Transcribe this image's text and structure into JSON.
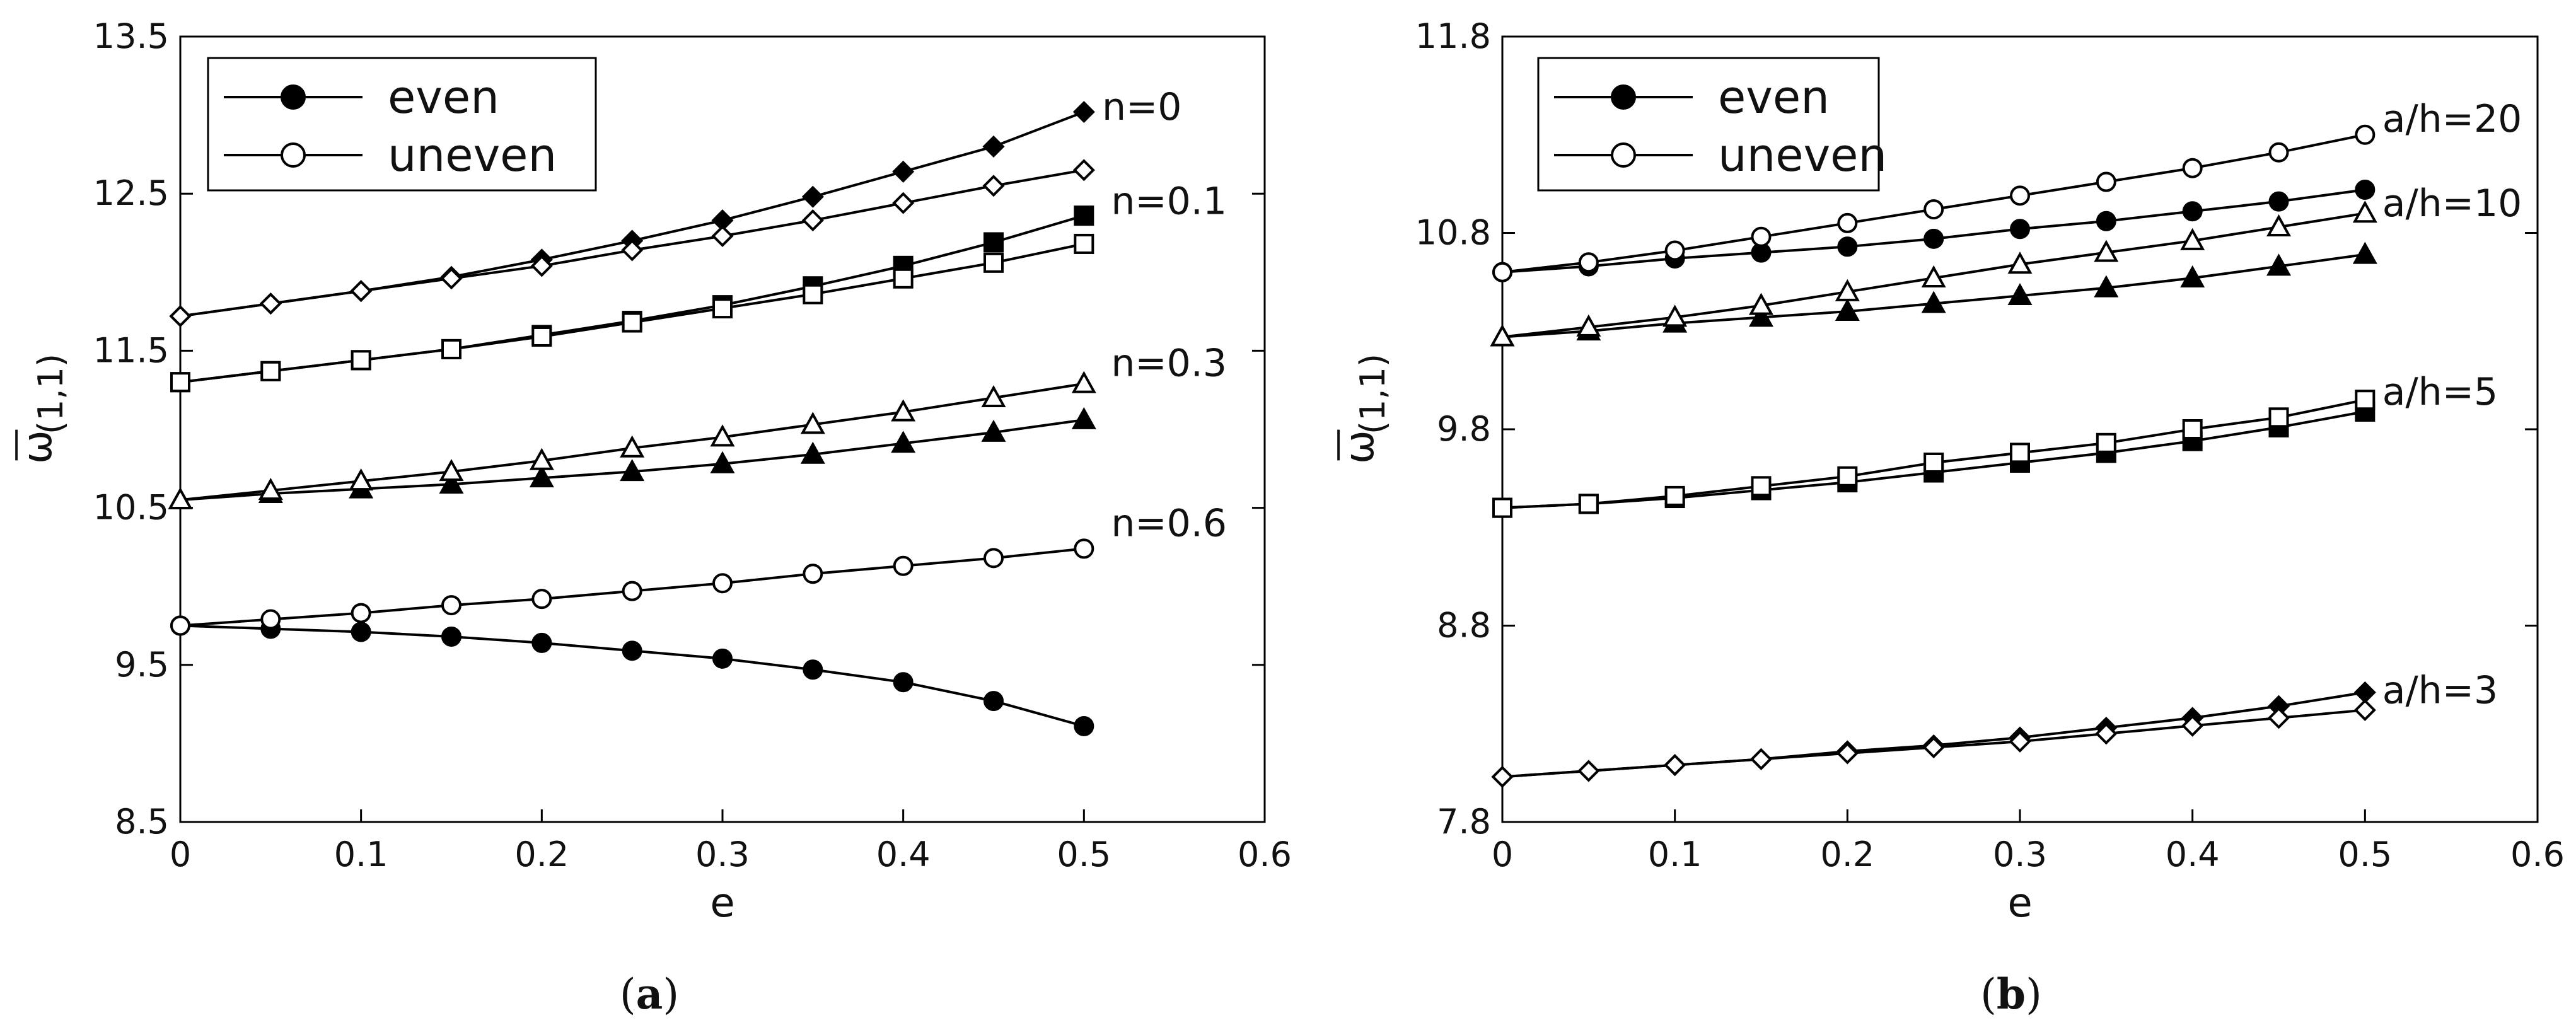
{
  "chart_data": [
    {
      "type": "line",
      "panel_label": "a",
      "xlabel": "e",
      "ylabel": "ω",
      "ylabel_overline": "—",
      "ylabel_sub": "(1,1)",
      "xlim": [
        0,
        0.6
      ],
      "ylim": [
        8.5,
        13.5
      ],
      "xticks": [
        0,
        0.1,
        0.2,
        0.3,
        0.4,
        0.5,
        0.6
      ],
      "xtick_labels": [
        "0",
        "0.1",
        "0.2",
        "0.3",
        "0.4",
        "0.5",
        "0.6"
      ],
      "yticks": [
        8.5,
        9.5,
        10.5,
        11.5,
        12.5,
        13.5
      ],
      "ytick_labels": [
        "8.5",
        "9.5",
        "10.5",
        "11.5",
        "12.5",
        "13.5"
      ],
      "legend": [
        {
          "label": "even",
          "fill": "filled"
        },
        {
          "label": "uneven",
          "fill": "open"
        }
      ],
      "x": [
        0,
        0.05,
        0.1,
        0.15,
        0.2,
        0.25,
        0.3,
        0.35,
        0.4,
        0.45,
        0.5
      ],
      "series": [
        {
          "name": "n=0 even",
          "group": "n=0",
          "marker": "diamond",
          "fill": "filled",
          "values": [
            11.72,
            11.8,
            11.88,
            11.97,
            12.08,
            12.2,
            12.33,
            12.48,
            12.64,
            12.8,
            13.02
          ]
        },
        {
          "name": "n=0 uneven",
          "group": "n=0",
          "marker": "diamond",
          "fill": "open",
          "values": [
            11.72,
            11.8,
            11.88,
            11.96,
            12.04,
            12.14,
            12.23,
            12.33,
            12.44,
            12.55,
            12.65
          ]
        },
        {
          "name": "n=0.1 even",
          "group": "n=0.1",
          "marker": "square",
          "fill": "filled",
          "values": [
            11.3,
            11.37,
            11.44,
            11.51,
            11.6,
            11.69,
            11.79,
            11.91,
            12.04,
            12.19,
            12.36
          ]
        },
        {
          "name": "n=0.1 uneven",
          "group": "n=0.1",
          "marker": "square",
          "fill": "open",
          "values": [
            11.3,
            11.37,
            11.44,
            11.51,
            11.59,
            11.68,
            11.77,
            11.86,
            11.96,
            12.06,
            12.18
          ]
        },
        {
          "name": "n=0.3 even",
          "group": "n=0.3",
          "marker": "triangle",
          "fill": "filled",
          "values": [
            10.55,
            10.59,
            10.62,
            10.65,
            10.69,
            10.73,
            10.78,
            10.84,
            10.91,
            10.98,
            11.06
          ]
        },
        {
          "name": "n=0.3 uneven",
          "group": "n=0.3",
          "marker": "triangle",
          "fill": "open",
          "values": [
            10.55,
            10.61,
            10.67,
            10.73,
            10.8,
            10.88,
            10.95,
            11.03,
            11.11,
            11.2,
            11.29
          ]
        },
        {
          "name": "n=0.6 even",
          "group": "n=0.6",
          "marker": "circle",
          "fill": "filled",
          "values": [
            9.75,
            9.73,
            9.71,
            9.68,
            9.64,
            9.59,
            9.54,
            9.47,
            9.39,
            9.27,
            9.11
          ]
        },
        {
          "name": "n=0.6 uneven",
          "group": "n=0.6",
          "marker": "circle",
          "fill": "open",
          "values": [
            9.75,
            9.79,
            9.83,
            9.88,
            9.92,
            9.97,
            10.02,
            10.08,
            10.13,
            10.18,
            10.24
          ]
        }
      ],
      "annotations": [
        {
          "text": "n=0",
          "x": 0.51,
          "y": 13.05
        },
        {
          "text": "n=0.1",
          "x": 0.515,
          "y": 12.45
        },
        {
          "text": "n=0.3",
          "x": 0.515,
          "y": 11.42
        },
        {
          "text": "n=0.6",
          "x": 0.515,
          "y": 10.4
        }
      ]
    },
    {
      "type": "line",
      "panel_label": "b",
      "xlabel": "e",
      "ylabel": "ω",
      "ylabel_overline": "—",
      "ylabel_sub": "(1,1)",
      "xlim": [
        0,
        0.6
      ],
      "ylim": [
        7.8,
        11.8
      ],
      "xticks": [
        0,
        0.1,
        0.2,
        0.3,
        0.4,
        0.5,
        0.6
      ],
      "xtick_labels": [
        "0",
        "0.1",
        "0.2",
        "0.3",
        "0.4",
        "0.5",
        "0.6"
      ],
      "yticks": [
        7.8,
        8.8,
        9.8,
        10.8,
        11.8
      ],
      "ytick_labels": [
        "7.8",
        "8.8",
        "9.8",
        "10.8",
        "11.8"
      ],
      "legend": [
        {
          "label": "even",
          "fill": "filled"
        },
        {
          "label": "uneven",
          "fill": "open"
        }
      ],
      "x": [
        0,
        0.05,
        0.1,
        0.15,
        0.2,
        0.25,
        0.3,
        0.35,
        0.4,
        0.45,
        0.5
      ],
      "series": [
        {
          "name": "a/h=20 even",
          "group": "a/h=20",
          "marker": "circle",
          "fill": "filled",
          "values": [
            10.6,
            10.63,
            10.67,
            10.7,
            10.73,
            10.77,
            10.82,
            10.86,
            10.91,
            10.96,
            11.02
          ]
        },
        {
          "name": "a/h=20 uneven",
          "group": "a/h=20",
          "marker": "circle",
          "fill": "open",
          "values": [
            10.6,
            10.65,
            10.71,
            10.78,
            10.85,
            10.92,
            10.99,
            11.06,
            11.13,
            11.21,
            11.3
          ]
        },
        {
          "name": "a/h=10 even",
          "group": "a/h=10",
          "marker": "triangle",
          "fill": "filled",
          "values": [
            10.27,
            10.3,
            10.34,
            10.37,
            10.4,
            10.44,
            10.48,
            10.52,
            10.57,
            10.63,
            10.69
          ]
        },
        {
          "name": "a/h=10 uneven",
          "group": "a/h=10",
          "marker": "triangle",
          "fill": "open",
          "values": [
            10.27,
            10.32,
            10.37,
            10.43,
            10.5,
            10.57,
            10.64,
            10.7,
            10.76,
            10.83,
            10.9
          ]
        },
        {
          "name": "a/h=5 even",
          "group": "a/h=5",
          "marker": "square",
          "fill": "filled",
          "values": [
            9.4,
            9.42,
            9.45,
            9.49,
            9.53,
            9.58,
            9.63,
            9.68,
            9.74,
            9.81,
            9.89
          ]
        },
        {
          "name": "a/h=5 uneven",
          "group": "a/h=5",
          "marker": "square",
          "fill": "open",
          "values": [
            9.4,
            9.42,
            9.46,
            9.51,
            9.56,
            9.63,
            9.68,
            9.73,
            9.8,
            9.86,
            9.95
          ]
        },
        {
          "name": "a/h=3 even",
          "group": "a/h=3",
          "marker": "diamond",
          "fill": "filled",
          "values": [
            8.03,
            8.06,
            8.09,
            8.12,
            8.16,
            8.19,
            8.23,
            8.28,
            8.33,
            8.39,
            8.46
          ]
        },
        {
          "name": "a/h=3 uneven",
          "group": "a/h=3",
          "marker": "diamond",
          "fill": "open",
          "values": [
            8.03,
            8.06,
            8.09,
            8.12,
            8.15,
            8.18,
            8.21,
            8.25,
            8.29,
            8.33,
            8.37
          ]
        }
      ],
      "annotations": [
        {
          "text": "a/h=20",
          "x": 0.51,
          "y": 11.38
        },
        {
          "text": "a/h=10",
          "x": 0.51,
          "y": 10.95
        },
        {
          "text": "a/h=5",
          "x": 0.51,
          "y": 9.99
        },
        {
          "text": "a/h=3",
          "x": 0.51,
          "y": 8.47
        }
      ]
    }
  ]
}
